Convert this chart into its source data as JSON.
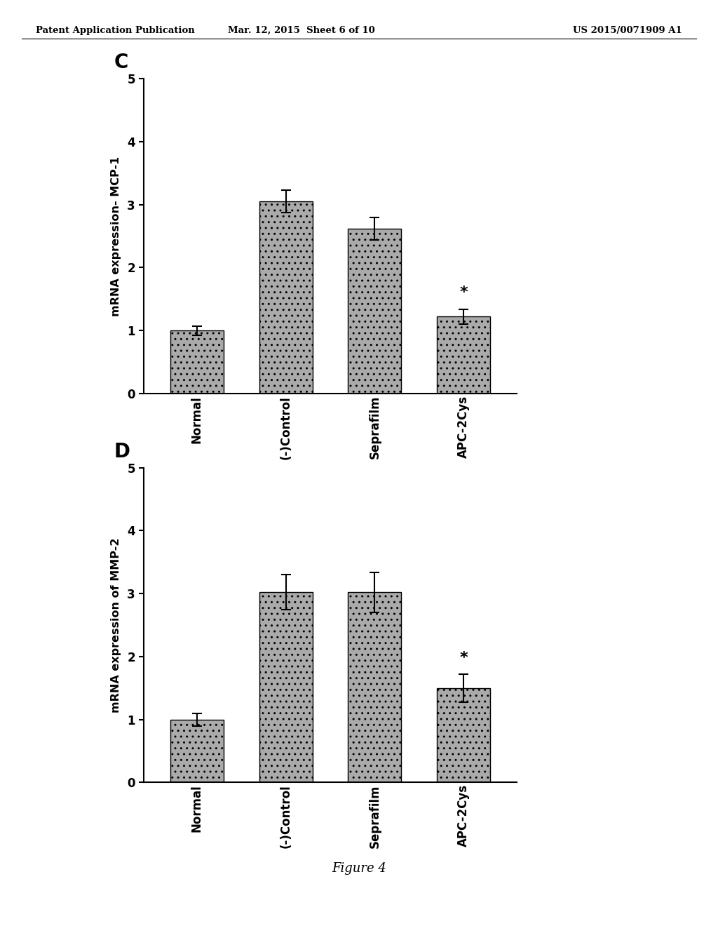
{
  "header_left": "Patent Application Publication",
  "header_center": "Mar. 12, 2015  Sheet 6 of 10",
  "header_right": "US 2015/0071909 A1",
  "footer": "Figure 4",
  "chart_C": {
    "label": "C",
    "ylabel": "mRNA expression- MCP-1",
    "categories": [
      "Normal",
      "(-)Control",
      "Seprafilm",
      "APC-2Cys"
    ],
    "values": [
      1.0,
      3.05,
      2.62,
      1.22
    ],
    "errors": [
      0.07,
      0.18,
      0.18,
      0.12
    ],
    "ylim": [
      0,
      5
    ],
    "yticks": [
      0,
      1,
      2,
      3,
      4,
      5
    ],
    "bar_color": "#aaaaaa",
    "hatch": ".."
  },
  "chart_D": {
    "label": "D",
    "ylabel": "mRNA expression of MMP-2",
    "categories": [
      "Normal",
      "(-)Control",
      "Seprafilm",
      "APC-2Cys"
    ],
    "values": [
      1.0,
      3.02,
      3.02,
      1.5
    ],
    "errors": [
      0.1,
      0.28,
      0.32,
      0.22
    ],
    "ylim": [
      0,
      5
    ],
    "yticks": [
      0,
      1,
      2,
      3,
      4,
      5
    ],
    "bar_color": "#aaaaaa",
    "hatch": ".."
  },
  "background_color": "#ffffff",
  "text_color": "#000000"
}
